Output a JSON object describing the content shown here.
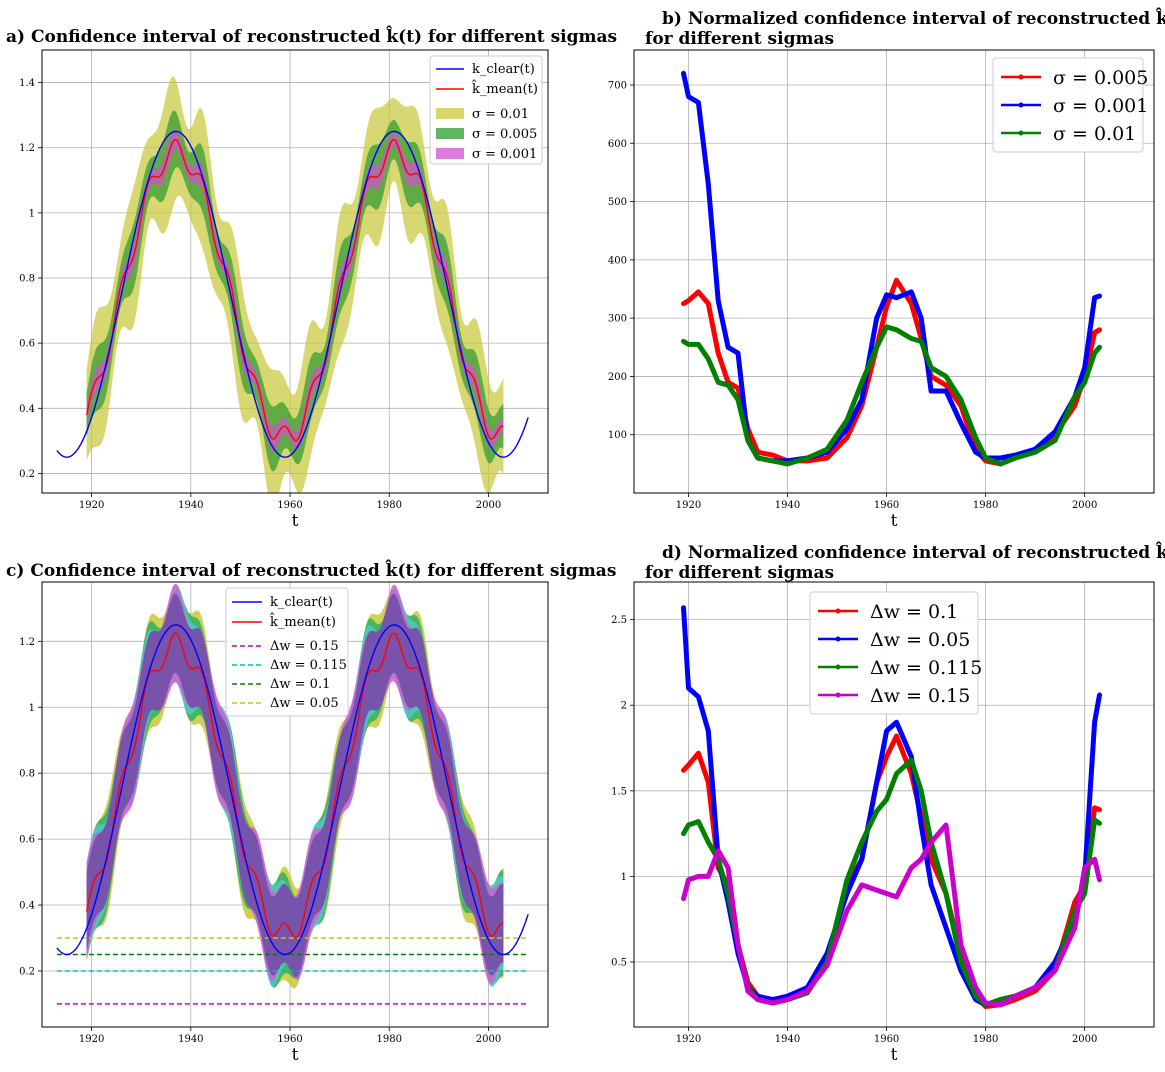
{
  "chart_data": [
    {
      "panel": "a",
      "type": "area",
      "title": "a) Confidence interval of reconstructed k̂(t)  for different sigmas",
      "xlabel": "t",
      "ylabel": "",
      "xlim": [
        1910,
        2012
      ],
      "ylim": [
        0.14,
        1.5
      ],
      "xticks": [
        1920,
        1940,
        1960,
        1980,
        2000
      ],
      "yticks": [
        0.2,
        0.4,
        0.6,
        0.8,
        1.0,
        1.2,
        1.4
      ],
      "grid": true,
      "legend": "top-right",
      "lines": [
        {
          "name": "k_clear(t)",
          "color": "#0000ff",
          "x_start": 1913,
          "x_end": 2008
        },
        {
          "name": "k̂_mean(t)",
          "color": "#ff0000",
          "x_start": 1919,
          "x_end": 2003
        }
      ],
      "bands": [
        {
          "name": "σ = 0.01",
          "color": "#c8c838",
          "halfwidth": 0.17
        },
        {
          "name": "σ = 0.005",
          "color": "#2e9a2e",
          "halfwidth": 0.08
        },
        {
          "name": "σ = 0.001",
          "color": "#d050d0",
          "halfwidth": 0.03
        }
      ]
    },
    {
      "panel": "b",
      "type": "line",
      "title_line1": "b) Normalized confidence interval of reconstructed k̂(t)",
      "title_line2": "for different sigmas",
      "xlabel": "t",
      "ylabel": "",
      "xlim": [
        1909,
        2014
      ],
      "ylim": [
        0,
        760
      ],
      "xticks": [
        1920,
        1940,
        1960,
        1980,
        2000
      ],
      "yticks": [
        100,
        200,
        300,
        400,
        500,
        600,
        700
      ],
      "grid": true,
      "legend": "top-right",
      "series": [
        {
          "name": "σ = 0.005",
          "color": "#ff0000",
          "x": [
            1919,
            1920,
            1922,
            1924,
            1926,
            1928,
            1930,
            1932,
            1934,
            1937,
            1940,
            1944,
            1948,
            1952,
            1955,
            1958,
            1960,
            1962,
            1965,
            1967,
            1969,
            1972,
            1975,
            1978,
            1980,
            1983,
            1986,
            1990,
            1994,
            1998,
            2000,
            2002,
            2003
          ],
          "y": [
            325,
            330,
            345,
            325,
            240,
            190,
            180,
            110,
            70,
            65,
            55,
            55,
            60,
            95,
            150,
            250,
            320,
            365,
            325,
            265,
            200,
            185,
            150,
            75,
            55,
            50,
            60,
            75,
            100,
            150,
            200,
            275,
            280
          ]
        },
        {
          "name": "σ = 0.001",
          "color": "#0000ff",
          "x": [
            1919,
            1920,
            1922,
            1924,
            1926,
            1928,
            1930,
            1932,
            1934,
            1937,
            1940,
            1944,
            1948,
            1952,
            1955,
            1958,
            1960,
            1962,
            1965,
            1967,
            1969,
            1972,
            1975,
            1978,
            1980,
            1983,
            1986,
            1990,
            1994,
            1998,
            2000,
            2002,
            2003
          ],
          "y": [
            720,
            680,
            670,
            530,
            330,
            250,
            240,
            90,
            60,
            55,
            55,
            60,
            70,
            110,
            160,
            300,
            340,
            335,
            345,
            300,
            175,
            175,
            120,
            70,
            60,
            60,
            65,
            75,
            105,
            165,
            215,
            335,
            338
          ]
        },
        {
          "name": "σ = 0.01",
          "color": "#008000",
          "x": [
            1919,
            1920,
            1922,
            1924,
            1926,
            1928,
            1930,
            1932,
            1934,
            1937,
            1940,
            1944,
            1948,
            1952,
            1955,
            1958,
            1960,
            1962,
            1965,
            1967,
            1969,
            1972,
            1975,
            1978,
            1980,
            1983,
            1986,
            1990,
            1994,
            1998,
            2000,
            2002,
            2003
          ],
          "y": [
            260,
            255,
            255,
            230,
            190,
            185,
            160,
            90,
            60,
            55,
            50,
            60,
            75,
            125,
            190,
            250,
            285,
            280,
            265,
            260,
            215,
            200,
            160,
            95,
            60,
            50,
            60,
            70,
            90,
            165,
            190,
            240,
            250
          ]
        }
      ]
    },
    {
      "panel": "c",
      "type": "area",
      "title": "c) Confidence interval of reconstructed k̂(t)  for different sigmas",
      "xlabel": "t",
      "ylabel": "",
      "xlim": [
        1910,
        2012
      ],
      "ylim": [
        0.03,
        1.38
      ],
      "xticks": [
        1920,
        1940,
        1960,
        1980,
        2000
      ],
      "yticks": [
        0.2,
        0.4,
        0.6,
        0.8,
        1.0,
        1.2
      ],
      "grid": true,
      "legend": "top-center",
      "lines": [
        {
          "name": "k_clear(t)",
          "color": "#0000ff"
        },
        {
          "name": "k̂_mean(t)",
          "color": "#ff0000"
        }
      ],
      "hlines": [
        {
          "name": "Δw = 0.15",
          "color": "#cc00cc",
          "y": 0.1
        },
        {
          "name": "Δw = 0.115",
          "color": "#00bfbf",
          "y": 0.2
        },
        {
          "name": "Δw = 0.1",
          "color": "#008000",
          "y": 0.25
        },
        {
          "name": "Δw = 0.05",
          "color": "#c8c800",
          "y": 0.3
        }
      ]
    },
    {
      "panel": "d",
      "type": "line",
      "title_line1": "d) Normalized confidence interval of reconstructed k̂(t)",
      "title_line2": "for different sigmas",
      "xlabel": "t",
      "ylabel": "",
      "xlim": [
        1909,
        2014
      ],
      "ylim": [
        0.12,
        2.72
      ],
      "xticks": [
        1920,
        1940,
        1960,
        1980,
        2000
      ],
      "yticks": [
        0.5,
        1.0,
        1.5,
        2.0,
        2.5
      ],
      "grid": true,
      "legend": "top-center",
      "series": [
        {
          "name": "Δw = 0.1",
          "color": "#ff0000",
          "x": [
            1919,
            1920,
            1922,
            1924,
            1926,
            1928,
            1930,
            1932,
            1934,
            1937,
            1940,
            1944,
            1948,
            1952,
            1955,
            1958,
            1960,
            1962,
            1965,
            1967,
            1969,
            1972,
            1975,
            1978,
            1980,
            1983,
            1986,
            1990,
            1994,
            1998,
            2000,
            2002,
            2003
          ],
          "y": [
            1.62,
            1.65,
            1.72,
            1.55,
            1.05,
            0.95,
            0.6,
            0.38,
            0.3,
            0.26,
            0.28,
            0.32,
            0.5,
            0.95,
            1.1,
            1.55,
            1.7,
            1.82,
            1.6,
            1.35,
            1.1,
            0.9,
            0.55,
            0.3,
            0.24,
            0.25,
            0.28,
            0.33,
            0.45,
            0.85,
            0.95,
            1.4,
            1.39
          ]
        },
        {
          "name": "Δw = 0.05",
          "color": "#0000ff",
          "x": [
            1919,
            1920,
            1922,
            1924,
            1926,
            1928,
            1930,
            1932,
            1934,
            1937,
            1940,
            1944,
            1948,
            1952,
            1955,
            1958,
            1960,
            1962,
            1965,
            1967,
            1969,
            1972,
            1975,
            1978,
            1980,
            1983,
            1986,
            1990,
            1994,
            1998,
            2000,
            2002,
            2003
          ],
          "y": [
            2.57,
            2.1,
            2.05,
            1.85,
            1.1,
            0.85,
            0.55,
            0.35,
            0.3,
            0.28,
            0.3,
            0.35,
            0.55,
            0.9,
            1.1,
            1.55,
            1.85,
            1.9,
            1.7,
            1.3,
            0.95,
            0.7,
            0.45,
            0.28,
            0.25,
            0.28,
            0.3,
            0.35,
            0.5,
            0.75,
            1.0,
            1.9,
            2.06
          ]
        },
        {
          "name": "Δw = 0.115",
          "color": "#008000",
          "x": [
            1919,
            1920,
            1922,
            1924,
            1926,
            1928,
            1930,
            1932,
            1934,
            1937,
            1940,
            1944,
            1948,
            1952,
            1955,
            1958,
            1960,
            1962,
            1965,
            1967,
            1969,
            1972,
            1975,
            1978,
            1980,
            1983,
            1986,
            1990,
            1994,
            1998,
            2000,
            2002,
            2003
          ],
          "y": [
            1.25,
            1.3,
            1.32,
            1.2,
            1.1,
            0.9,
            0.6,
            0.35,
            0.28,
            0.26,
            0.28,
            0.32,
            0.5,
            0.98,
            1.2,
            1.38,
            1.45,
            1.6,
            1.68,
            1.5,
            1.2,
            0.9,
            0.5,
            0.3,
            0.25,
            0.28,
            0.3,
            0.35,
            0.45,
            0.8,
            0.9,
            1.33,
            1.31
          ]
        },
        {
          "name": "Δw = 0.15",
          "color": "#cc00cc",
          "x": [
            1919,
            1920,
            1922,
            1924,
            1926,
            1928,
            1930,
            1932,
            1934,
            1937,
            1940,
            1944,
            1948,
            1952,
            1955,
            1958,
            1960,
            1962,
            1965,
            1967,
            1969,
            1972,
            1975,
            1978,
            1980,
            1983,
            1986,
            1990,
            1994,
            1998,
            2000,
            2002,
            2003
          ],
          "y": [
            0.87,
            0.98,
            1.0,
            1.0,
            1.15,
            1.05,
            0.6,
            0.33,
            0.28,
            0.26,
            0.28,
            0.33,
            0.48,
            0.8,
            0.95,
            0.92,
            0.9,
            0.88,
            1.05,
            1.1,
            1.2,
            1.3,
            0.6,
            0.35,
            0.26,
            0.25,
            0.3,
            0.35,
            0.45,
            0.7,
            1.05,
            1.1,
            0.98
          ]
        }
      ]
    }
  ]
}
